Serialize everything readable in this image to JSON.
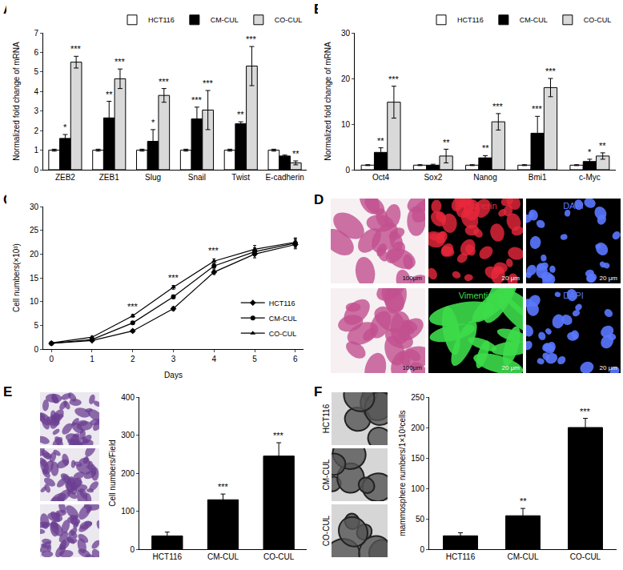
{
  "chart_data": [
    {
      "title": "A",
      "type": "bar",
      "categories": [
        "ZEB2",
        "ZEB1",
        "Slug",
        "Snail",
        "Twist",
        "E-cadherin"
      ],
      "y_label": "Normalized fold change of mRNA",
      "ylim": [
        0,
        7
      ],
      "yticks": [
        0,
        1,
        2,
        3,
        4,
        5,
        6,
        7
      ],
      "legend": "upper right",
      "series": [
        {
          "name": "HCT116",
          "color": "#ffffff",
          "values": [
            1,
            1,
            1,
            1,
            1,
            1
          ],
          "errors": [
            0.05,
            0.05,
            0.05,
            0.05,
            0.05,
            0.05
          ]
        },
        {
          "name": "CM-CUL",
          "color": "#000000",
          "values": [
            1.6,
            2.65,
            1.45,
            2.6,
            2.35,
            0.7
          ],
          "errors": [
            0.2,
            0.85,
            0.6,
            0.6,
            0.1,
            0.05
          ],
          "significance": [
            "*",
            "**",
            "*",
            "***",
            "**",
            null
          ]
        },
        {
          "name": "CO-CUL",
          "color": "#d9d9d9",
          "values": [
            5.5,
            4.65,
            3.8,
            3.05,
            5.3,
            0.35
          ],
          "errors": [
            0.3,
            0.5,
            0.35,
            1.0,
            1.0,
            0.1
          ],
          "significance": [
            "***",
            "***",
            "***",
            "***",
            "***",
            "**"
          ]
        }
      ]
    },
    {
      "title": "B",
      "type": "bar",
      "categories": [
        "Oct4",
        "Sox2",
        "Nanog",
        "Bmi1",
        "c-Myc"
      ],
      "y_label": "Normalized fold change of mRNA",
      "ylim": [
        0,
        30
      ],
      "yticks": [
        0,
        10,
        20,
        30
      ],
      "legend": "upper right",
      "series": [
        {
          "name": "HCT116",
          "color": "#ffffff",
          "values": [
            1,
            1,
            1,
            1,
            1
          ],
          "errors": [
            0.1,
            0.1,
            0.1,
            0.1,
            0.1
          ]
        },
        {
          "name": "CM-CUL",
          "color": "#000000",
          "values": [
            3.8,
            1.0,
            2.6,
            8.0,
            1.8
          ],
          "errors": [
            1.0,
            0.2,
            0.5,
            3.7,
            0.5
          ],
          "significance": [
            "**",
            null,
            "**",
            "***",
            "*"
          ]
        },
        {
          "name": "CO-CUL",
          "color": "#d9d9d9",
          "values": [
            14.8,
            3.0,
            10.5,
            18.0,
            3.0
          ],
          "errors": [
            3.5,
            1.5,
            1.8,
            2.0,
            0.7
          ],
          "significance": [
            "***",
            "**",
            "***",
            "***",
            "**"
          ]
        }
      ]
    },
    {
      "title": "C",
      "type": "line",
      "x": [
        0,
        1,
        2,
        3,
        4,
        5,
        6
      ],
      "x_label": "Days",
      "y_label": "Cell numbers(×10³)",
      "xlim": [
        -0.2,
        6.2
      ],
      "xticks": [
        0,
        1,
        2,
        3,
        4,
        5,
        6
      ],
      "ylim": [
        0,
        30
      ],
      "yticks": [
        0,
        5,
        10,
        15,
        20,
        25,
        30
      ],
      "legend": "lower right",
      "significance": [
        null,
        null,
        "***",
        "***",
        "***",
        null,
        null
      ],
      "series": [
        {
          "name": "HCT116",
          "color": "#000000",
          "marker": "diamond",
          "values": [
            1.2,
            1.8,
            3.8,
            8.5,
            16.2,
            20.0,
            22.0
          ],
          "errors": [
            0.2,
            0.2,
            0.3,
            0.4,
            0.5,
            0.8,
            0.9
          ]
        },
        {
          "name": "CM-CUL",
          "color": "#000000",
          "marker": "circle",
          "values": [
            1.2,
            2.0,
            5.5,
            11.0,
            17.5,
            20.5,
            22.3
          ],
          "errors": [
            0.2,
            0.2,
            0.3,
            0.4,
            0.5,
            0.8,
            0.9
          ]
        },
        {
          "name": "CO-CUL",
          "color": "#000000",
          "marker": "triangle-up",
          "values": [
            1.3,
            2.5,
            7.0,
            13.0,
            18.5,
            21.0,
            22.5
          ],
          "errors": [
            0.2,
            0.2,
            0.3,
            0.4,
            0.5,
            0.8,
            0.9
          ]
        }
      ]
    },
    {
      "title": "E",
      "type": "bar",
      "categories": [
        "HCT116",
        "CM-CUL",
        "CO-CUL"
      ],
      "y_label": "Cell numbers/Field",
      "ylim": [
        0,
        400
      ],
      "yticks": [
        0,
        100,
        200,
        300,
        400
      ],
      "color": "#000000",
      "values": [
        35,
        130,
        245
      ],
      "errors": [
        10,
        15,
        35
      ],
      "significance": [
        null,
        "***",
        "***"
      ]
    },
    {
      "title": "F",
      "type": "bar",
      "categories": [
        "HCT116",
        "CM-CUL",
        "CO-CUL"
      ],
      "y_label": "mammosphere numbers/1×10³cells",
      "ylim": [
        0,
        250
      ],
      "yticks": [
        0,
        50,
        100,
        150,
        200,
        250
      ],
      "color": "#000000",
      "values": [
        22,
        55,
        200
      ],
      "errors": [
        5,
        12,
        15
      ],
      "significance": [
        null,
        "**",
        "***"
      ]
    }
  ],
  "micrographs": {
    "D": {
      "title": "D",
      "panels": [
        {
          "scale": "100μm",
          "color": "#c2508e"
        },
        {
          "label": "E-cadherin",
          "scale": "20 μm",
          "color": "#e8283c"
        },
        {
          "label": "DAPI",
          "scale": "20 μm",
          "color": "#5a78ff"
        },
        {
          "scale": "100μm",
          "color": "#c2508e"
        },
        {
          "label": "Vimentin",
          "scale": "20 μm",
          "color": "#3ddc4a"
        },
        {
          "label": "DAPI",
          "scale": "20 μm",
          "color": "#5a78ff"
        }
      ]
    }
  }
}
